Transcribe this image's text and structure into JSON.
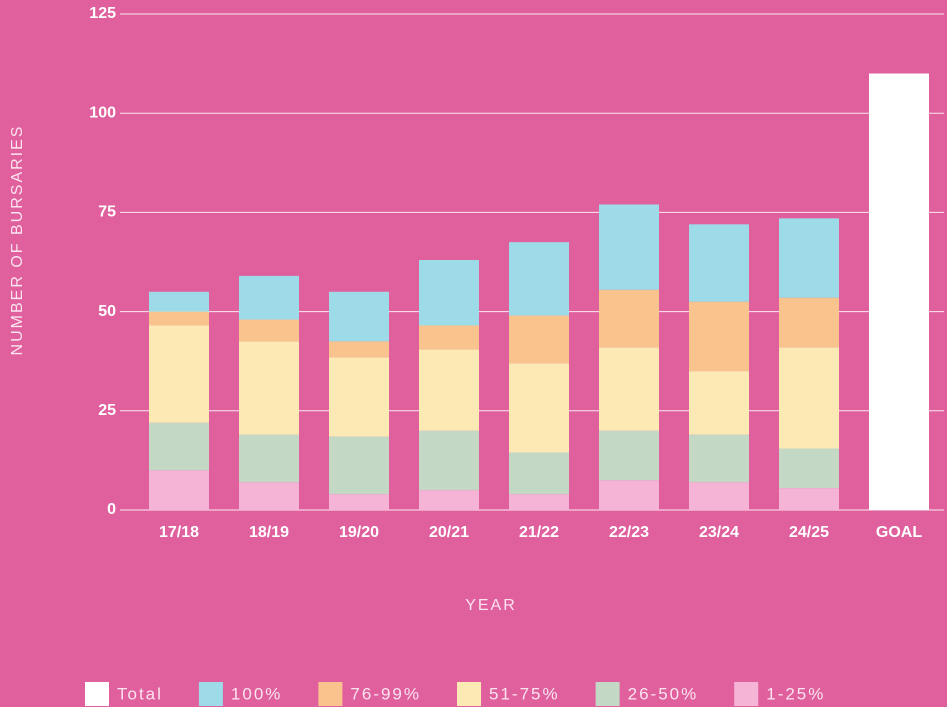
{
  "chart_data": {
    "type": "stacked-bar",
    "x_label": "YEAR",
    "y_label": "NUMBER OF BURSARIES",
    "categories": [
      "17/18",
      "18/19",
      "19/20",
      "20/21",
      "21/22",
      "22/23",
      "23/24",
      "24/25",
      "GOAL"
    ],
    "series": [
      {
        "name": "Total",
        "color": "#ffffff",
        "values": [
          null,
          null,
          null,
          null,
          null,
          null,
          null,
          null,
          110
        ]
      },
      {
        "name": "100%",
        "color": "#9ddbe8",
        "values": [
          5,
          11,
          12.5,
          16.5,
          18.5,
          21.5,
          19.5,
          20,
          null
        ]
      },
      {
        "name": "76-99%",
        "color": "#f9c38d",
        "values": [
          3.5,
          5.5,
          4,
          6,
          12,
          14.5,
          17.5,
          12.5,
          null
        ]
      },
      {
        "name": "51-75%",
        "color": "#fde9b4",
        "values": [
          24.5,
          23.5,
          20,
          20.5,
          22.5,
          21,
          16,
          25.5,
          null
        ]
      },
      {
        "name": "26-50%",
        "color": "#c4d9c5",
        "values": [
          12,
          12,
          14.5,
          15,
          10.5,
          12.5,
          12,
          10,
          null
        ]
      },
      {
        "name": "1-25%",
        "color": "#f5b3d6",
        "values": [
          10,
          7,
          4,
          5,
          4,
          7.5,
          7,
          5.5,
          null
        ]
      }
    ],
    "ylim": [
      0,
      125
    ],
    "yticks": [
      0,
      25,
      50,
      75,
      100,
      125
    ],
    "grid": true
  }
}
